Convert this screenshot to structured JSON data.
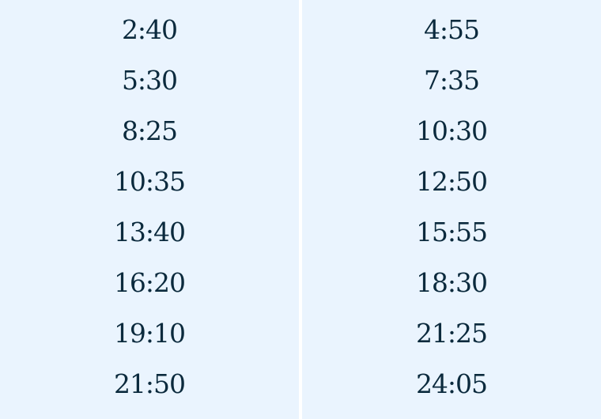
{
  "columns": [
    {
      "times": [
        "2:40",
        "5:30",
        "8:25",
        "10:35",
        "13:40",
        "16:20",
        "19:10",
        "21:50"
      ]
    },
    {
      "times": [
        "4:55",
        "7:35",
        "10:30",
        "12:50",
        "15:55",
        "18:30",
        "21:25",
        "24:05"
      ]
    }
  ],
  "colors": {
    "background": "#eaf4fe",
    "text": "#0b2a3d",
    "divider": "#ffffff"
  }
}
